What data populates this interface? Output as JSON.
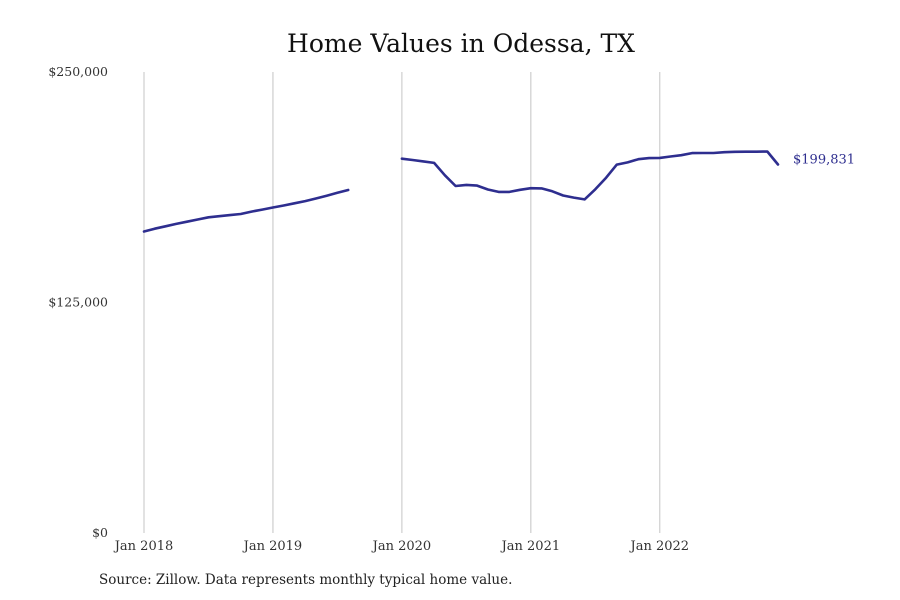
{
  "chart_data": {
    "type": "line",
    "title": "Home Values in Odessa, TX",
    "xlabel": "",
    "ylabel": "",
    "ylim": [
      0,
      250000
    ],
    "xlim": [
      "2018-01",
      "2022-12"
    ],
    "y_ticks": [
      {
        "value": 0,
        "label": "$0"
      },
      {
        "value": 125000,
        "label": "$125,000"
      },
      {
        "value": 250000,
        "label": "$250,000"
      }
    ],
    "x_ticks": [
      {
        "value": "2018-01",
        "label": "Jan 2018"
      },
      {
        "value": "2019-01",
        "label": "Jan 2019"
      },
      {
        "value": "2020-01",
        "label": "Jan 2020"
      },
      {
        "value": "2021-01",
        "label": "Jan 2021"
      },
      {
        "value": "2022-01",
        "label": "Jan 2022"
      }
    ],
    "grid": "vertical",
    "line_color": "#2e2e8f",
    "series": [
      {
        "segments": [
          {
            "x": [
              "2018-01",
              "2018-02",
              "2018-03",
              "2018-04",
              "2018-05",
              "2018-06",
              "2018-07",
              "2018-08",
              "2018-09",
              "2018-10",
              "2018-11",
              "2018-12",
              "2019-01",
              "2019-02",
              "2019-03",
              "2019-04",
              "2019-05",
              "2019-06",
              "2019-07",
              "2019-08"
            ],
            "y": [
              163500,
              165000,
              166300,
              167600,
              168800,
              170000,
              171200,
              171800,
              172400,
              173000,
              174300,
              175400,
              176500,
              177600,
              178800,
              180000,
              181400,
              182900,
              184500,
              186000
            ]
          },
          {
            "x": [
              "2020-01",
              "2020-02",
              "2020-03",
              "2020-04",
              "2020-05",
              "2020-06",
              "2020-07",
              "2020-08",
              "2020-09",
              "2020-10",
              "2020-11",
              "2020-12",
              "2021-01",
              "2021-02",
              "2021-03",
              "2021-04",
              "2021-05",
              "2021-06",
              "2021-07",
              "2021-08",
              "2021-09",
              "2021-10",
              "2021-11",
              "2021-12",
              "2022-01",
              "2022-02",
              "2022-03",
              "2022-04",
              "2022-05",
              "2022-06",
              "2022-07",
              "2022-08",
              "2022-09",
              "2022-10",
              "2022-11",
              "2022-12"
            ],
            "y": [
              203000,
              202300,
              201500,
              200700,
              194000,
              188200,
              188800,
              188400,
              186300,
              185000,
              185000,
              186100,
              187000,
              186900,
              185300,
              183000,
              181900,
              180900,
              186400,
              192700,
              199800,
              201000,
              202700,
              203300,
              203400,
              204200,
              204900,
              206000,
              206100,
              206100,
              206500,
              206700,
              206800,
              206800,
              206900,
              199831
            ]
          }
        ]
      }
    ],
    "end_label": "$199,831",
    "source_note": "Source: Zillow. Data represents monthly typical home value."
  }
}
